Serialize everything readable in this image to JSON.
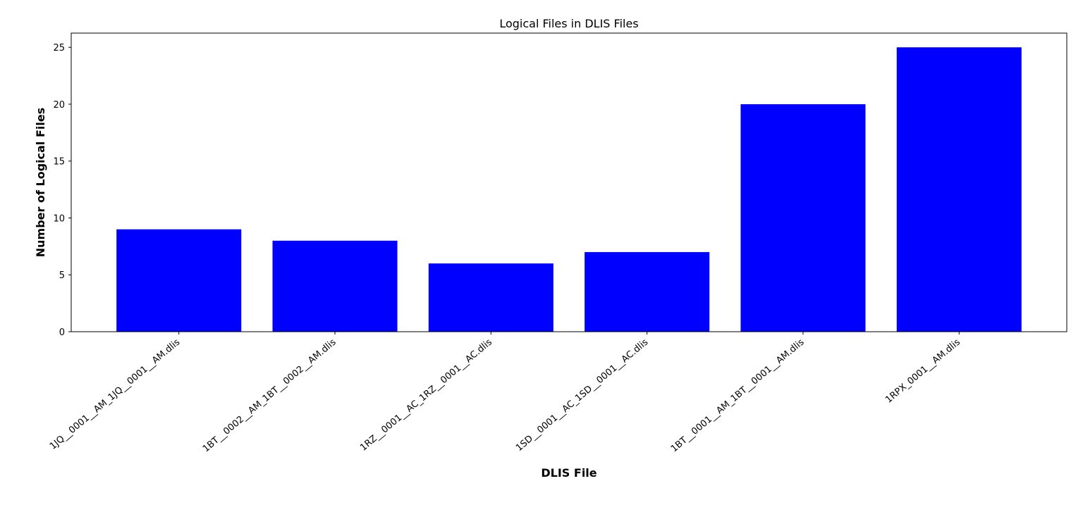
{
  "chart_data": {
    "type": "bar",
    "title": "Logical Files in DLIS Files",
    "xlabel": "DLIS File",
    "ylabel": "Number of Logical Files",
    "categories": [
      "1JQ__0001__AM_1JQ__0001__AM.dlis",
      "1BT__0002__AM_1BT__0002__AM.dlis",
      "1RZ__0001__AC_1RZ__0001__AC.dlis",
      "1SD__0001__AC_1SD__0001__AC.dlis",
      "1BT__0001__AM_1BT__0001__AM.dlis",
      "1RPX_0001__AM.dlis"
    ],
    "values": [
      9,
      8,
      6,
      7,
      20,
      25
    ],
    "ylim": [
      0,
      26.25
    ],
    "yticks": [
      0,
      5,
      10,
      15,
      20,
      25
    ],
    "bar_color": "#0000ff",
    "grid": false,
    "legend": false
  }
}
